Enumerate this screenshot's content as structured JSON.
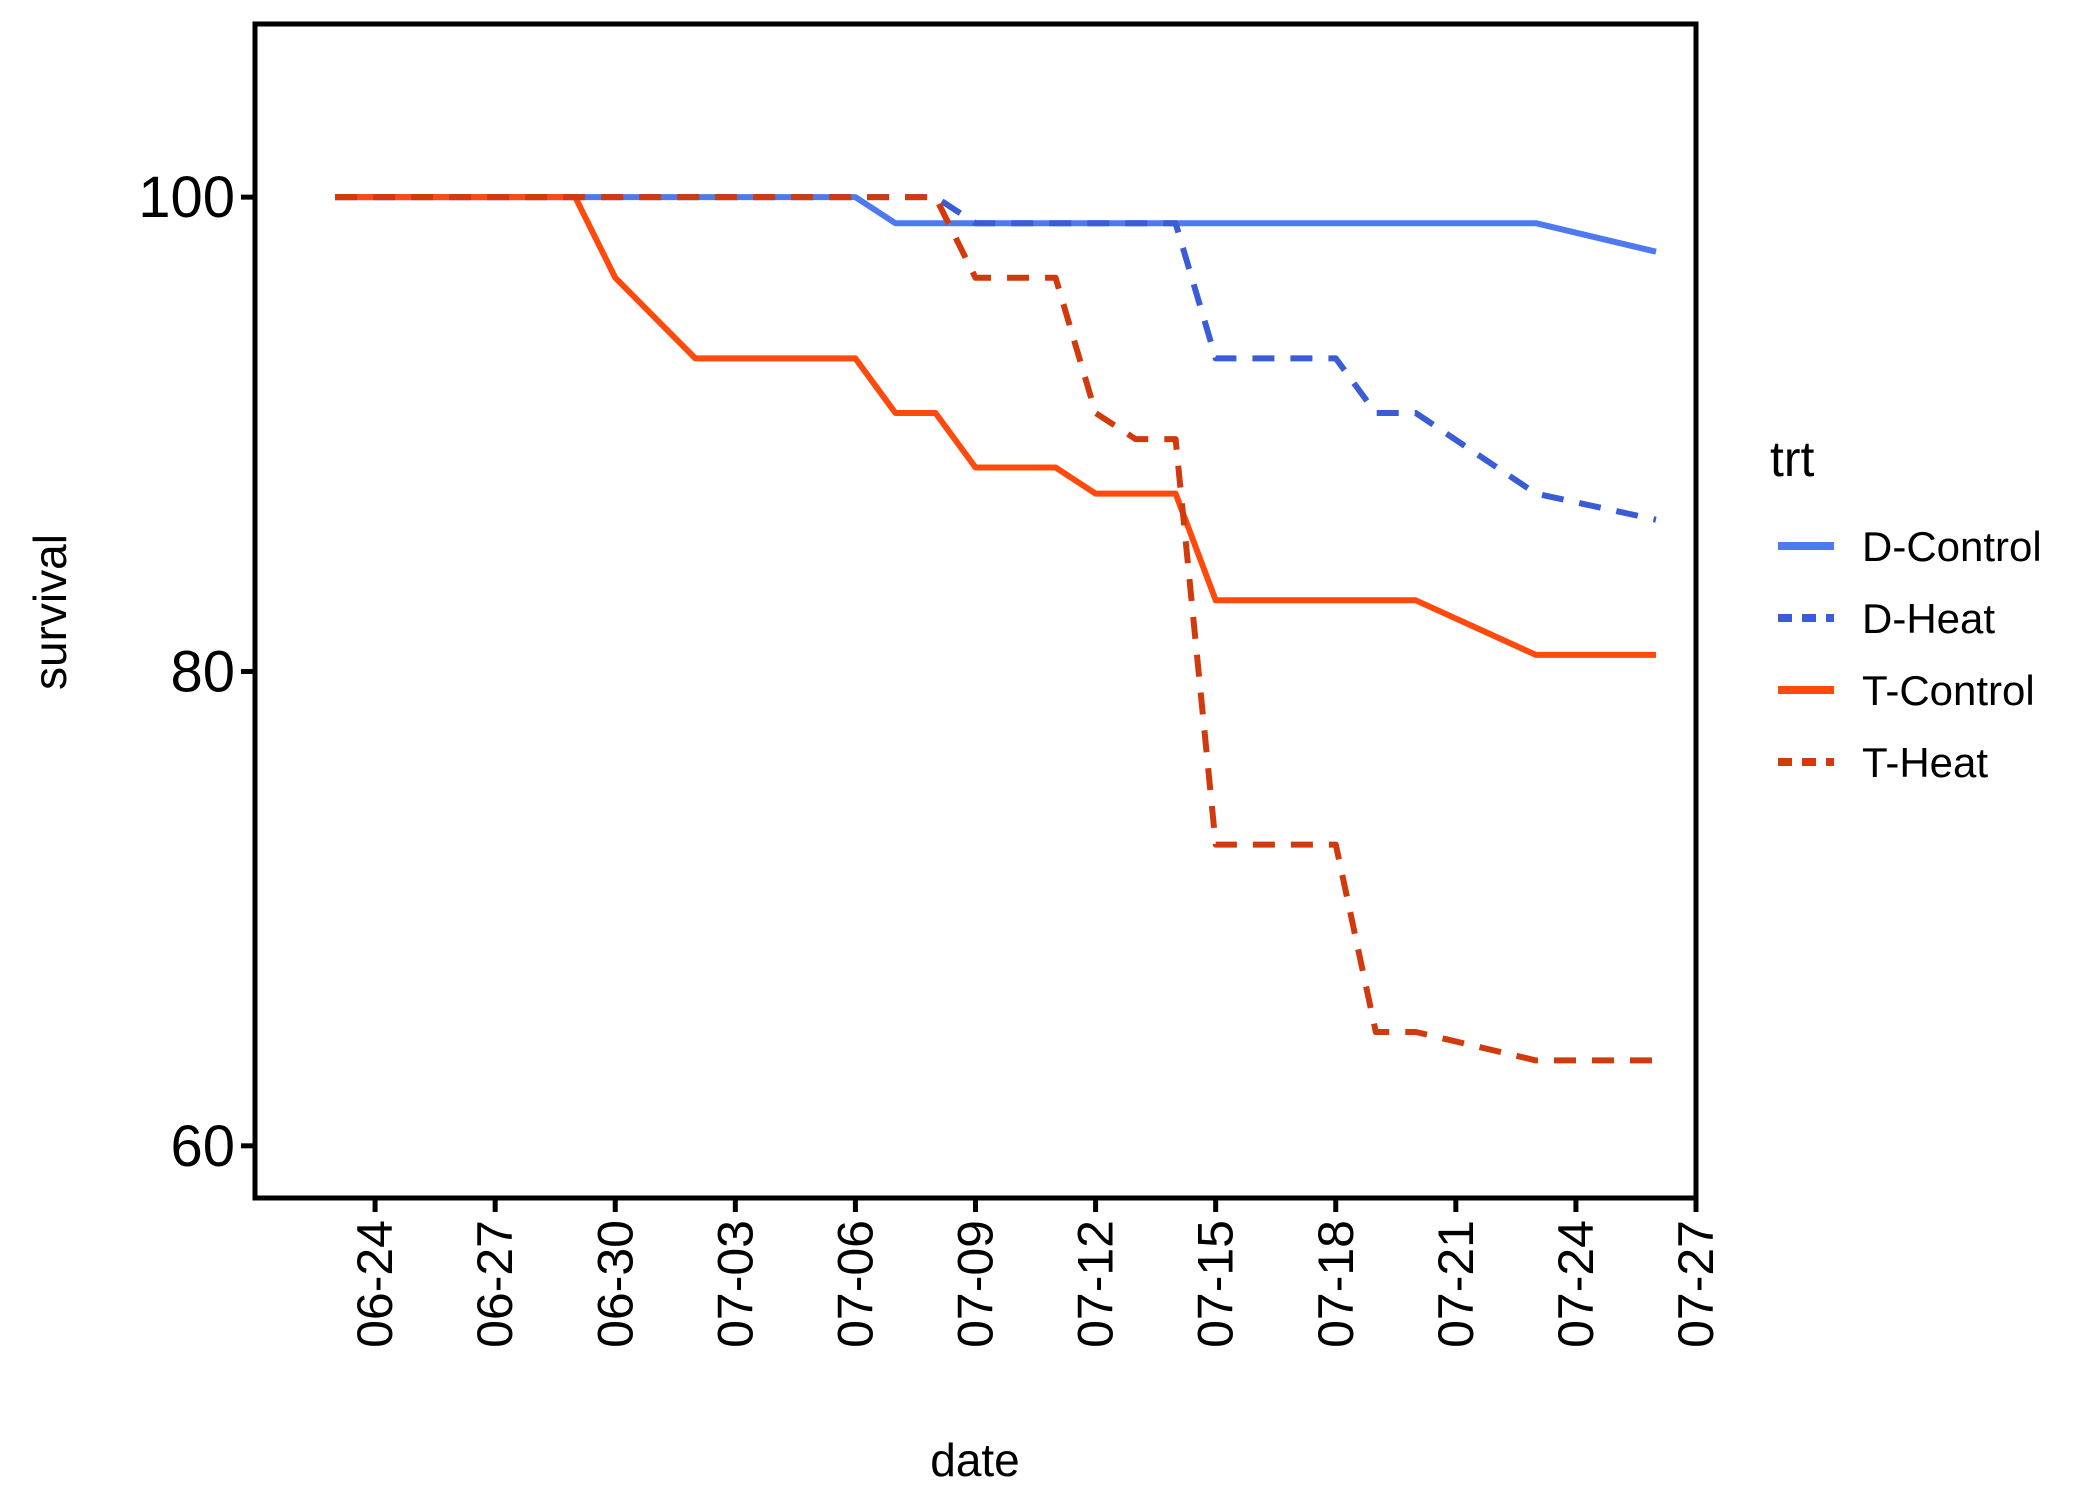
{
  "chart_data": {
    "type": "line",
    "xlabel": "date",
    "ylabel": "survival",
    "x_tick_labels": [
      "06-24",
      "06-27",
      "06-30",
      "07-03",
      "07-06",
      "07-09",
      "07-12",
      "07-15",
      "07-18",
      "07-21",
      "07-24",
      "07-27"
    ],
    "x_tick_dates": [
      "2000-06-24",
      "2000-06-27",
      "2000-06-30",
      "2000-07-03",
      "2000-07-06",
      "2000-07-09",
      "2000-07-12",
      "2000-07-15",
      "2000-07-18",
      "2000-07-21",
      "2000-07-24",
      "2000-07-27"
    ],
    "xlim": [
      "2000-06-21",
      "2000-07-27"
    ],
    "y_ticks": [
      60,
      80,
      100
    ],
    "ylim": [
      57.8,
      107.3
    ],
    "grid": false,
    "legend": {
      "title": "trt",
      "position": "right",
      "entries": [
        "D-Control",
        "D-Heat",
        "T-Control",
        "T-Heat"
      ]
    },
    "series": [
      {
        "name": "D-Control",
        "color": "#4F79EE",
        "dash": "solid",
        "points": [
          [
            "2000-06-23",
            100
          ],
          [
            "2000-07-06",
            100
          ],
          [
            "2000-07-07",
            98.9
          ],
          [
            "2000-07-23",
            98.9
          ],
          [
            "2000-07-26",
            97.7
          ]
        ]
      },
      {
        "name": "D-Heat",
        "color": "#3A5CD4",
        "dash": "dashed",
        "points": [
          [
            "2000-06-23",
            100
          ],
          [
            "2000-07-08",
            100
          ],
          [
            "2000-07-09",
            98.9
          ],
          [
            "2000-07-14",
            98.9
          ],
          [
            "2000-07-15",
            93.2
          ],
          [
            "2000-07-18",
            93.2
          ],
          [
            "2000-07-19",
            90.9
          ],
          [
            "2000-07-20",
            90.9
          ],
          [
            "2000-07-23",
            87.5
          ],
          [
            "2000-07-26",
            86.4
          ]
        ]
      },
      {
        "name": "T-Control",
        "color": "#FF4A0D",
        "dash": "solid",
        "points": [
          [
            "2000-06-23",
            100
          ],
          [
            "2000-06-29",
            100
          ],
          [
            "2000-06-30",
            96.6
          ],
          [
            "2000-07-02",
            93.2
          ],
          [
            "2000-07-06",
            93.2
          ],
          [
            "2000-07-07",
            90.9
          ],
          [
            "2000-07-08",
            90.9
          ],
          [
            "2000-07-09",
            88.6
          ],
          [
            "2000-07-11",
            88.6
          ],
          [
            "2000-07-12",
            87.5
          ],
          [
            "2000-07-14",
            87.5
          ],
          [
            "2000-07-15",
            83.0
          ],
          [
            "2000-07-20",
            83.0
          ],
          [
            "2000-07-23",
            80.7
          ],
          [
            "2000-07-26",
            80.7
          ]
        ]
      },
      {
        "name": "T-Heat",
        "color": "#D13A0C",
        "dash": "dashed",
        "points": [
          [
            "2000-06-23",
            100
          ],
          [
            "2000-07-08",
            100
          ],
          [
            "2000-07-09",
            96.6
          ],
          [
            "2000-07-11",
            96.6
          ],
          [
            "2000-07-12",
            90.9
          ],
          [
            "2000-07-13",
            89.8
          ],
          [
            "2000-07-14",
            89.8
          ],
          [
            "2000-07-15",
            72.7
          ],
          [
            "2000-07-18",
            72.7
          ],
          [
            "2000-07-19",
            64.8
          ],
          [
            "2000-07-20",
            64.8
          ],
          [
            "2000-07-23",
            63.6
          ],
          [
            "2000-07-26",
            63.6
          ]
        ]
      }
    ]
  }
}
